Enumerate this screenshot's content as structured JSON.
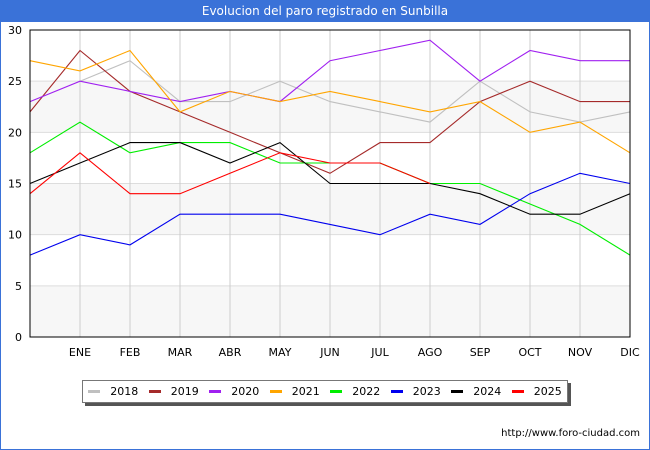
{
  "window": {
    "title": "Evolucion del paro registrado en Sunbilla"
  },
  "footer": {
    "url": "http://www.foro-ciudad.com"
  },
  "chart_data": {
    "type": "line",
    "title": "Evolucion del paro registrado en Sunbilla",
    "xlabel": "",
    "ylabel": "",
    "categories": [
      "",
      "ENE",
      "FEB",
      "MAR",
      "ABR",
      "MAY",
      "JUN",
      "JUL",
      "AGO",
      "SEP",
      "OCT",
      "NOV",
      "DIC"
    ],
    "ylim": [
      0,
      30
    ],
    "yticks": [
      0,
      5,
      10,
      15,
      20,
      25,
      30
    ],
    "grid": true,
    "legend_position": "bottom",
    "series": [
      {
        "name": "2018",
        "color": "#c0c0c0",
        "values": [
          null,
          25,
          27,
          23,
          23,
          25,
          23,
          22,
          21,
          25,
          22,
          21,
          22
        ]
      },
      {
        "name": "2019",
        "color": "#a52a2a",
        "values": [
          22,
          28,
          24,
          22,
          20,
          18,
          16,
          19,
          19,
          23,
          25,
          23,
          23
        ]
      },
      {
        "name": "2020",
        "color": "#a020f0",
        "values": [
          23,
          25,
          24,
          23,
          24,
          23,
          27,
          28,
          29,
          25,
          28,
          27,
          27
        ]
      },
      {
        "name": "2021",
        "color": "#ffa500",
        "values": [
          27,
          26,
          28,
          22,
          24,
          23,
          24,
          23,
          22,
          23,
          20,
          21,
          18
        ]
      },
      {
        "name": "2022",
        "color": "#00ee00",
        "values": [
          18,
          21,
          18,
          19,
          19,
          17,
          17,
          17,
          15,
          15,
          13,
          11,
          8
        ]
      },
      {
        "name": "2023",
        "color": "#0000ee",
        "values": [
          8,
          10,
          9,
          12,
          12,
          12,
          11,
          10,
          12,
          11,
          14,
          16,
          15
        ]
      },
      {
        "name": "2024",
        "color": "#000000",
        "values": [
          15,
          17,
          19,
          19,
          17,
          19,
          15,
          15,
          15,
          14,
          12,
          12,
          14
        ]
      },
      {
        "name": "2025",
        "color": "#ff0000",
        "values": [
          14,
          18,
          14,
          14,
          16,
          18,
          17,
          17,
          15,
          null,
          null,
          null,
          null
        ]
      }
    ]
  }
}
